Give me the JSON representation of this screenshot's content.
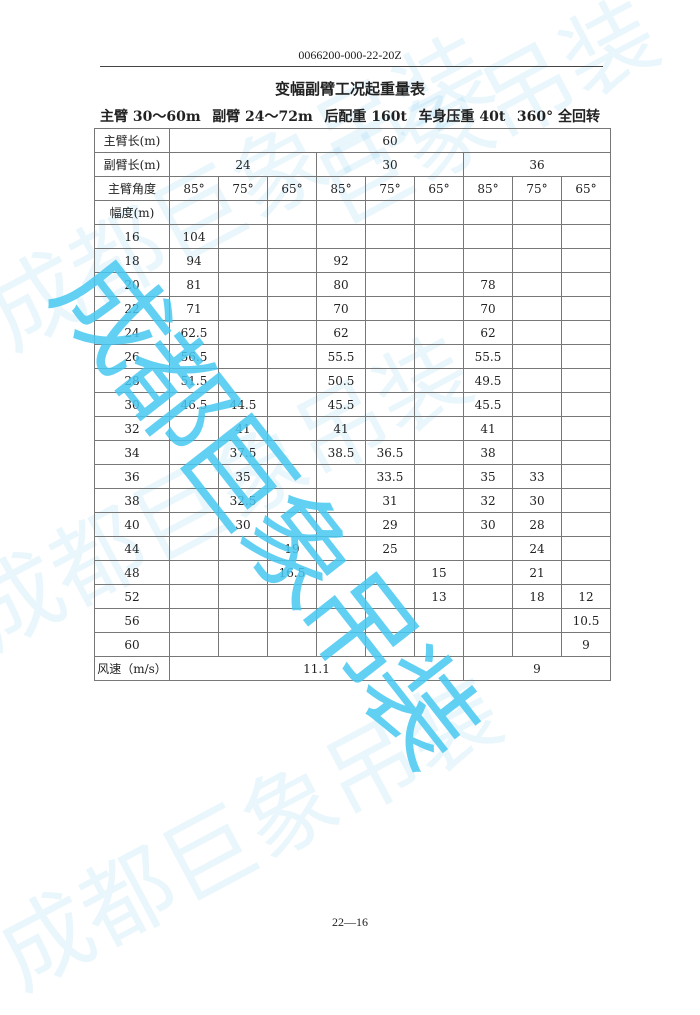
{
  "doc_code": "0066200-000-22-20Z",
  "title": "变幅副臂工况起重量表",
  "subtitle": [
    "主臂 30～60m",
    "副臂 24～72m",
    "后配重 160t",
    "车身压重 40t",
    "360° 全回转"
  ],
  "table": {
    "main_boom_label": "主臂长(m)",
    "main_boom_value": "60",
    "jib_label": "副臂长(m)",
    "jib_values": [
      "24",
      "30",
      "36"
    ],
    "angle_label": "主臂角度",
    "angles": [
      "85°",
      "75°",
      "65°",
      "85°",
      "75°",
      "65°",
      "85°",
      "75°",
      "65°"
    ],
    "radius_label": "幅度(m)",
    "rows": [
      {
        "r": "16",
        "v": [
          "104",
          "",
          "",
          "",
          "",
          "",
          "",
          "",
          ""
        ]
      },
      {
        "r": "18",
        "v": [
          "94",
          "",
          "",
          "92",
          "",
          "",
          "",
          "",
          ""
        ]
      },
      {
        "r": "20",
        "v": [
          "81",
          "",
          "",
          "80",
          "",
          "",
          "78",
          "",
          ""
        ]
      },
      {
        "r": "22",
        "v": [
          "71",
          "",
          "",
          "70",
          "",
          "",
          "70",
          "",
          ""
        ]
      },
      {
        "r": "24",
        "v": [
          "62.5",
          "",
          "",
          "62",
          "",
          "",
          "62",
          "",
          ""
        ]
      },
      {
        "r": "26",
        "v": [
          "56.5",
          "",
          "",
          "55.5",
          "",
          "",
          "55.5",
          "",
          ""
        ]
      },
      {
        "r": "28",
        "v": [
          "51.5",
          "",
          "",
          "50.5",
          "",
          "",
          "49.5",
          "",
          ""
        ]
      },
      {
        "r": "30",
        "v": [
          "46.5",
          "44.5",
          "",
          "45.5",
          "",
          "",
          "45.5",
          "",
          ""
        ]
      },
      {
        "r": "32",
        "v": [
          "",
          "41",
          "",
          "41",
          "",
          "",
          "41",
          "",
          ""
        ]
      },
      {
        "r": "34",
        "v": [
          "",
          "37.5",
          "",
          "38.5",
          "36.5",
          "",
          "38",
          "",
          ""
        ]
      },
      {
        "r": "36",
        "v": [
          "",
          "35",
          "",
          "",
          "33.5",
          "",
          "35",
          "33",
          ""
        ]
      },
      {
        "r": "38",
        "v": [
          "",
          "32.5",
          "",
          "",
          "31",
          "",
          "32",
          "30",
          ""
        ]
      },
      {
        "r": "40",
        "v": [
          "",
          "30",
          "",
          "",
          "29",
          "",
          "30",
          "28",
          ""
        ]
      },
      {
        "r": "44",
        "v": [
          "",
          "",
          "19",
          "",
          "25",
          "",
          "",
          "24",
          ""
        ]
      },
      {
        "r": "48",
        "v": [
          "",
          "",
          "16.5",
          "",
          "",
          "15",
          "",
          "21",
          ""
        ]
      },
      {
        "r": "52",
        "v": [
          "",
          "",
          "",
          "",
          "",
          "13",
          "",
          "18",
          "12"
        ]
      },
      {
        "r": "56",
        "v": [
          "",
          "",
          "",
          "",
          "",
          "",
          "",
          "",
          "10.5"
        ]
      },
      {
        "r": "60",
        "v": [
          "",
          "",
          "",
          "",
          "",
          "",
          "",
          "",
          "9"
        ]
      }
    ],
    "wind_label": "风速（m/s）",
    "wind_values": [
      "11.1",
      "9"
    ]
  },
  "page_number": "22—16",
  "watermark": "成都巨象吊装",
  "watermark_color": "#46c8f0"
}
